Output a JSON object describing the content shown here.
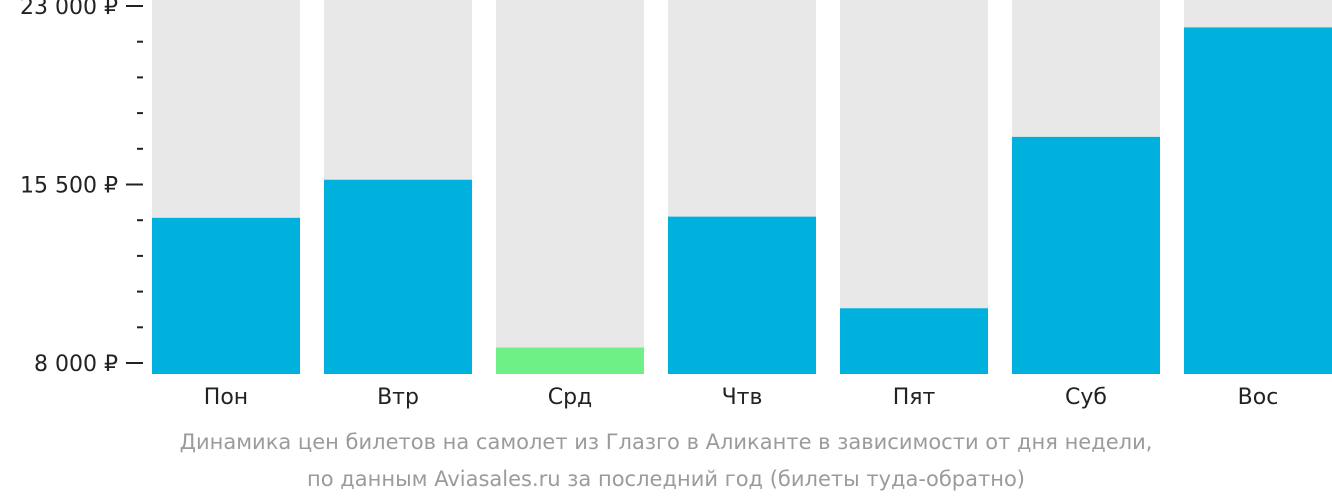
{
  "chart_data": {
    "type": "bar",
    "categories": [
      "Пон",
      "Втр",
      "Срд",
      "Чтв",
      "Пят",
      "Суб",
      "Вос"
    ],
    "values": [
      14100,
      15700,
      8650,
      14150,
      10300,
      17500,
      22100
    ],
    "ylim": [
      8000,
      23000
    ],
    "yticks": [
      {
        "value": 23000,
        "label": "23 000 ₽"
      },
      {
        "value": 15500,
        "label": "15 500 ₽"
      },
      {
        "value": 8000,
        "label": "8 000 ₽"
      }
    ],
    "minor_tick_step": 1500,
    "colors": {
      "bar": "#00b0dd",
      "bar_min": "#6ef086",
      "background_bar": "#e8e8e8",
      "axis": "#222222"
    },
    "caption_lines": [
      "Динамика цен билетов на самолет из Глазго в Аликанте в зависимости от дня недели,",
      "по данным Aviasales.ru за последний год (билеты туда-обратно)"
    ]
  }
}
